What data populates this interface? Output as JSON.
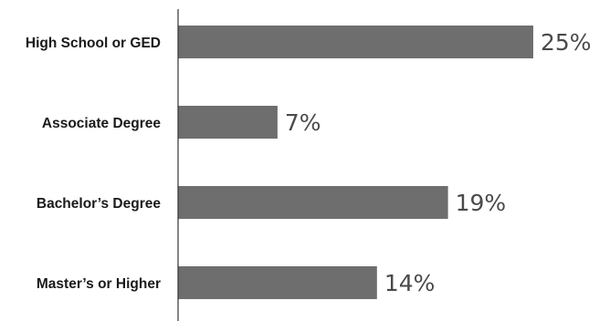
{
  "chart_data": {
    "type": "bar",
    "orientation": "horizontal",
    "categories": [
      "High School or GED",
      "Associate Degree",
      "Bachelor’s Degree",
      "Master’s or Higher"
    ],
    "values": [
      25,
      7,
      19,
      14
    ],
    "value_labels": [
      "25%",
      "7%",
      "19%",
      "14%"
    ],
    "title": "",
    "xlabel": "",
    "ylabel": "",
    "xlim": [
      0,
      25
    ],
    "grid": false,
    "legend": "none",
    "bar_color": "#6d6e6d",
    "axis_color": "#333333"
  }
}
